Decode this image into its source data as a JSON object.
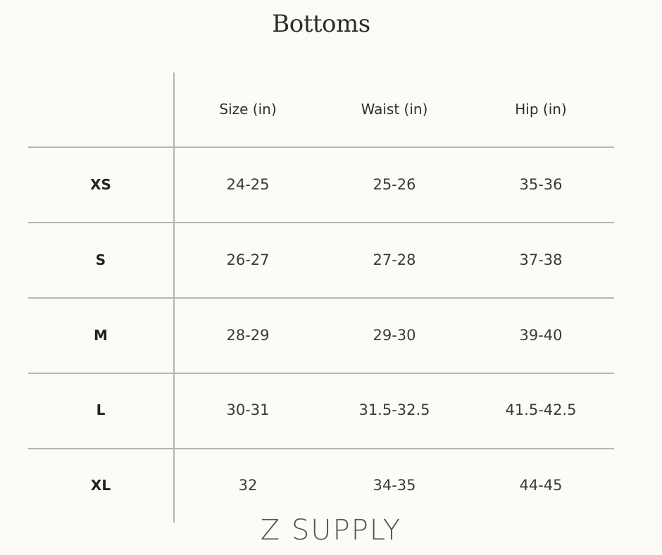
{
  "title": "Bottoms",
  "columns": [
    "",
    "Size (in)",
    "Waist (in)",
    "Hip (in)"
  ],
  "rows": [
    {
      "label": "XS",
      "size": "24-25",
      "waist": "25-26",
      "hip": "35-36"
    },
    {
      "label": "S",
      "size": "26-27",
      "waist": "27-28",
      "hip": "37-38"
    },
    {
      "label": "M",
      "size": "28-29",
      "waist": "29-30",
      "hip": "39-40"
    },
    {
      "label": "L",
      "size": "30-31",
      "waist": "31.5-32.5",
      "hip": "41.5-42.5"
    },
    {
      "label": "XL",
      "size": "32",
      "waist": "34-35",
      "hip": "44-45"
    }
  ],
  "brand": "Z SUPPLY",
  "colors": {
    "background": "#fcfbf7",
    "rule": "#b5b5b5",
    "text": "#333333"
  }
}
